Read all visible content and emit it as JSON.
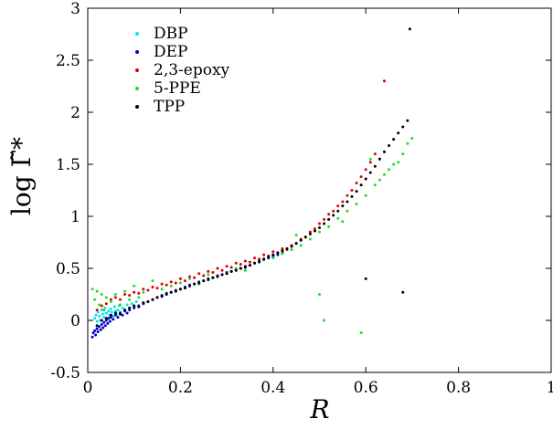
{
  "chart_data": {
    "type": "scatter",
    "xlabel": "R",
    "ylabel": "log Γ̃*",
    "xlim": [
      0,
      1
    ],
    "ylim": [
      -0.5,
      3
    ],
    "x_ticks": [
      "0",
      "0.2",
      "0.4",
      "0.6",
      "0.8",
      "1"
    ],
    "y_ticks": [
      "-0.5",
      "0",
      "0.5",
      "1",
      "1.5",
      "2",
      "2.5",
      "3"
    ],
    "legend_position": "top-left",
    "grid": false,
    "series": [
      {
        "name": "DBP",
        "color": "#00e5ee",
        "points": [
          [
            0.015,
            0.02
          ],
          [
            0.018,
            0.05
          ],
          [
            0.02,
            -0.01
          ],
          [
            0.022,
            0.08
          ],
          [
            0.025,
            0.04
          ],
          [
            0.027,
            0.0
          ],
          [
            0.03,
            0.1
          ],
          [
            0.032,
            0.06
          ],
          [
            0.035,
            0.03
          ],
          [
            0.037,
            0.12
          ],
          [
            0.04,
            0.07
          ],
          [
            0.042,
            0.02
          ],
          [
            0.045,
            0.09
          ],
          [
            0.047,
            0.05
          ],
          [
            0.05,
            0.11
          ],
          [
            0.052,
            0.08
          ],
          [
            0.055,
            0.04
          ],
          [
            0.058,
            0.13
          ],
          [
            0.06,
            0.09
          ],
          [
            0.062,
            0.06
          ],
          [
            0.065,
            0.1
          ],
          [
            0.068,
            0.14
          ],
          [
            0.07,
            0.08
          ],
          [
            0.075,
            0.12
          ],
          [
            0.08,
            0.1
          ],
          [
            0.085,
            0.15
          ],
          [
            0.09,
            0.12
          ],
          [
            0.095,
            0.16
          ],
          [
            0.1,
            0.14
          ],
          [
            0.105,
            0.18
          ]
        ]
      },
      {
        "name": "DEP",
        "color": "#0000cc",
        "points": [
          [
            0.01,
            -0.16
          ],
          [
            0.012,
            -0.12
          ],
          [
            0.015,
            -0.1
          ],
          [
            0.017,
            -0.14
          ],
          [
            0.02,
            -0.08
          ],
          [
            0.022,
            -0.11
          ],
          [
            0.025,
            -0.06
          ],
          [
            0.028,
            -0.09
          ],
          [
            0.03,
            -0.04
          ],
          [
            0.033,
            -0.07
          ],
          [
            0.035,
            -0.02
          ],
          [
            0.038,
            -0.05
          ],
          [
            0.04,
            0.0
          ],
          [
            0.043,
            -0.03
          ],
          [
            0.045,
            0.02
          ],
          [
            0.048,
            -0.01
          ],
          [
            0.05,
            0.03
          ],
          [
            0.055,
            0.01
          ],
          [
            0.06,
            0.05
          ],
          [
            0.065,
            0.03
          ],
          [
            0.07,
            0.07
          ],
          [
            0.075,
            0.05
          ],
          [
            0.08,
            0.09
          ],
          [
            0.085,
            0.07
          ],
          [
            0.09,
            0.1
          ],
          [
            0.1,
            0.12
          ],
          [
            0.11,
            0.14
          ],
          [
            0.12,
            0.16
          ],
          [
            0.13,
            0.18
          ],
          [
            0.14,
            0.2
          ],
          [
            0.15,
            0.22
          ],
          [
            0.16,
            0.24
          ],
          [
            0.17,
            0.26
          ],
          [
            0.18,
            0.27
          ],
          [
            0.19,
            0.29
          ],
          [
            0.2,
            0.3
          ],
          [
            0.21,
            0.32
          ],
          [
            0.22,
            0.34
          ],
          [
            0.23,
            0.35
          ],
          [
            0.24,
            0.37
          ],
          [
            0.25,
            0.38
          ],
          [
            0.26,
            0.4
          ],
          [
            0.27,
            0.41
          ],
          [
            0.28,
            0.43
          ],
          [
            0.29,
            0.44
          ],
          [
            0.3,
            0.46
          ],
          [
            0.31,
            0.47
          ],
          [
            0.32,
            0.49
          ],
          [
            0.33,
            0.5
          ],
          [
            0.34,
            0.52
          ],
          [
            0.35,
            0.53
          ],
          [
            0.36,
            0.55
          ],
          [
            0.37,
            0.56
          ],
          [
            0.38,
            0.58
          ],
          [
            0.39,
            0.6
          ],
          [
            0.4,
            0.62
          ],
          [
            0.41,
            0.63
          ],
          [
            0.42,
            0.65
          ]
        ]
      },
      {
        "name": "2,3-epoxy",
        "color": "#dd0000",
        "points": [
          [
            0.02,
            0.1
          ],
          [
            0.03,
            0.14
          ],
          [
            0.04,
            0.16
          ],
          [
            0.05,
            0.2
          ],
          [
            0.06,
            0.22
          ],
          [
            0.07,
            0.2
          ],
          [
            0.08,
            0.25
          ],
          [
            0.09,
            0.24
          ],
          [
            0.1,
            0.27
          ],
          [
            0.11,
            0.26
          ],
          [
            0.12,
            0.3
          ],
          [
            0.13,
            0.29
          ],
          [
            0.14,
            0.32
          ],
          [
            0.15,
            0.31
          ],
          [
            0.16,
            0.35
          ],
          [
            0.17,
            0.34
          ],
          [
            0.18,
            0.37
          ],
          [
            0.19,
            0.36
          ],
          [
            0.2,
            0.4
          ],
          [
            0.21,
            0.38
          ],
          [
            0.22,
            0.42
          ],
          [
            0.23,
            0.41
          ],
          [
            0.24,
            0.45
          ],
          [
            0.25,
            0.43
          ],
          [
            0.26,
            0.47
          ],
          [
            0.27,
            0.46
          ],
          [
            0.28,
            0.5
          ],
          [
            0.29,
            0.48
          ],
          [
            0.3,
            0.52
          ],
          [
            0.31,
            0.51
          ],
          [
            0.32,
            0.55
          ],
          [
            0.33,
            0.54
          ],
          [
            0.34,
            0.57
          ],
          [
            0.35,
            0.56
          ],
          [
            0.36,
            0.6
          ],
          [
            0.37,
            0.59
          ],
          [
            0.38,
            0.63
          ],
          [
            0.39,
            0.62
          ],
          [
            0.4,
            0.66
          ],
          [
            0.41,
            0.65
          ],
          [
            0.42,
            0.69
          ],
          [
            0.43,
            0.68
          ],
          [
            0.44,
            0.72
          ],
          [
            0.45,
            0.74
          ],
          [
            0.46,
            0.78
          ],
          [
            0.47,
            0.8
          ],
          [
            0.48,
            0.85
          ],
          [
            0.49,
            0.88
          ],
          [
            0.5,
            0.93
          ],
          [
            0.51,
            0.97
          ],
          [
            0.52,
            1.02
          ],
          [
            0.53,
            1.05
          ],
          [
            0.54,
            1.1
          ],
          [
            0.55,
            1.14
          ],
          [
            0.56,
            1.2
          ],
          [
            0.57,
            1.25
          ],
          [
            0.58,
            1.32
          ],
          [
            0.59,
            1.38
          ],
          [
            0.6,
            1.45
          ],
          [
            0.61,
            1.52
          ],
          [
            0.62,
            1.6
          ],
          [
            0.63,
            1.55
          ],
          [
            0.64,
            2.3
          ]
        ]
      },
      {
        "name": "5-PPE",
        "color": "#22dd22",
        "points": [
          [
            0.01,
            0.3
          ],
          [
            0.015,
            0.2
          ],
          [
            0.02,
            0.28
          ],
          [
            0.025,
            0.15
          ],
          [
            0.03,
            0.25
          ],
          [
            0.035,
            0.1
          ],
          [
            0.04,
            0.22
          ],
          [
            0.05,
            0.18
          ],
          [
            0.06,
            0.25
          ],
          [
            0.07,
            0.15
          ],
          [
            0.08,
            0.28
          ],
          [
            0.09,
            0.2
          ],
          [
            0.1,
            0.33
          ],
          [
            0.11,
            0.22
          ],
          [
            0.12,
            0.27
          ],
          [
            0.14,
            0.38
          ],
          [
            0.16,
            0.3
          ],
          [
            0.18,
            0.33
          ],
          [
            0.2,
            0.36
          ],
          [
            0.22,
            0.4
          ],
          [
            0.24,
            0.35
          ],
          [
            0.26,
            0.44
          ],
          [
            0.28,
            0.42
          ],
          [
            0.3,
            0.45
          ],
          [
            0.32,
            0.5
          ],
          [
            0.34,
            0.48
          ],
          [
            0.36,
            0.55
          ],
          [
            0.38,
            0.58
          ],
          [
            0.4,
            0.6
          ],
          [
            0.42,
            0.64
          ],
          [
            0.44,
            0.68
          ],
          [
            0.45,
            0.82
          ],
          [
            0.46,
            0.72
          ],
          [
            0.48,
            0.78
          ],
          [
            0.5,
            0.85
          ],
          [
            0.5,
            0.25
          ],
          [
            0.51,
            0.0
          ],
          [
            0.52,
            0.9
          ],
          [
            0.54,
            0.98
          ],
          [
            0.55,
            0.95
          ],
          [
            0.56,
            1.05
          ],
          [
            0.58,
            1.12
          ],
          [
            0.59,
            -0.12
          ],
          [
            0.6,
            1.2
          ],
          [
            0.61,
            1.55
          ],
          [
            0.62,
            1.3
          ],
          [
            0.63,
            1.35
          ],
          [
            0.64,
            1.4
          ],
          [
            0.65,
            1.45
          ],
          [
            0.66,
            1.5
          ],
          [
            0.67,
            1.52
          ],
          [
            0.68,
            1.6
          ],
          [
            0.69,
            1.7
          ],
          [
            0.7,
            1.75
          ]
        ]
      },
      {
        "name": "TPP",
        "color": "#000000",
        "points": [
          [
            0.02,
            -0.05
          ],
          [
            0.03,
            0.0
          ],
          [
            0.04,
            0.02
          ],
          [
            0.05,
            0.05
          ],
          [
            0.06,
            0.07
          ],
          [
            0.07,
            0.06
          ],
          [
            0.08,
            0.1
          ],
          [
            0.09,
            0.12
          ],
          [
            0.1,
            0.14
          ],
          [
            0.11,
            0.13
          ],
          [
            0.12,
            0.17
          ],
          [
            0.13,
            0.18
          ],
          [
            0.14,
            0.2
          ],
          [
            0.15,
            0.22
          ],
          [
            0.16,
            0.23
          ],
          [
            0.17,
            0.25
          ],
          [
            0.18,
            0.27
          ],
          [
            0.19,
            0.28
          ],
          [
            0.2,
            0.3
          ],
          [
            0.21,
            0.31
          ],
          [
            0.22,
            0.33
          ],
          [
            0.23,
            0.35
          ],
          [
            0.24,
            0.36
          ],
          [
            0.25,
            0.38
          ],
          [
            0.26,
            0.39
          ],
          [
            0.27,
            0.41
          ],
          [
            0.28,
            0.42
          ],
          [
            0.29,
            0.44
          ],
          [
            0.3,
            0.45
          ],
          [
            0.31,
            0.47
          ],
          [
            0.32,
            0.48
          ],
          [
            0.33,
            0.5
          ],
          [
            0.34,
            0.51
          ],
          [
            0.35,
            0.53
          ],
          [
            0.36,
            0.55
          ],
          [
            0.37,
            0.57
          ],
          [
            0.38,
            0.59
          ],
          [
            0.39,
            0.61
          ],
          [
            0.4,
            0.63
          ],
          [
            0.41,
            0.65
          ],
          [
            0.42,
            0.67
          ],
          [
            0.43,
            0.69
          ],
          [
            0.44,
            0.71
          ],
          [
            0.45,
            0.74
          ],
          [
            0.46,
            0.77
          ],
          [
            0.47,
            0.8
          ],
          [
            0.48,
            0.83
          ],
          [
            0.49,
            0.86
          ],
          [
            0.5,
            0.89
          ],
          [
            0.51,
            0.93
          ],
          [
            0.52,
            0.97
          ],
          [
            0.53,
            1.01
          ],
          [
            0.54,
            1.05
          ],
          [
            0.55,
            1.1
          ],
          [
            0.56,
            1.14
          ],
          [
            0.57,
            1.19
          ],
          [
            0.58,
            1.24
          ],
          [
            0.59,
            1.3
          ],
          [
            0.6,
            1.36
          ],
          [
            0.6,
            0.4
          ],
          [
            0.61,
            1.42
          ],
          [
            0.62,
            1.48
          ],
          [
            0.63,
            1.55
          ],
          [
            0.64,
            1.62
          ],
          [
            0.65,
            1.68
          ],
          [
            0.66,
            1.74
          ],
          [
            0.67,
            1.8
          ],
          [
            0.68,
            1.86
          ],
          [
            0.68,
            0.27
          ],
          [
            0.69,
            1.92
          ],
          [
            0.695,
            2.8
          ]
        ]
      }
    ]
  }
}
